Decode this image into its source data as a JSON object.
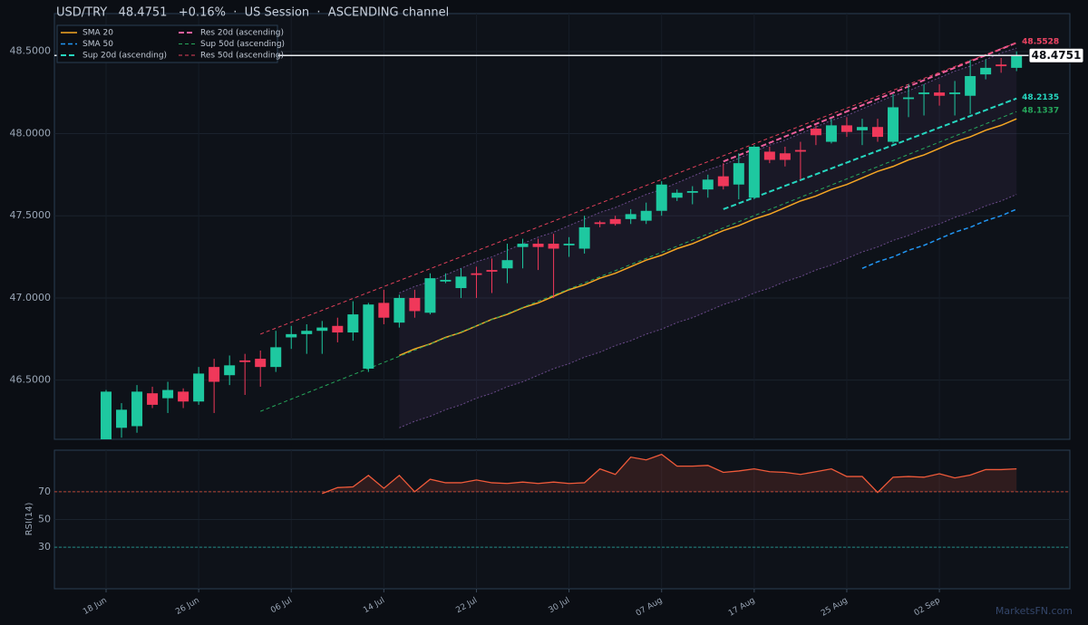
{
  "chart_data": [
    {
      "type": "candlestick",
      "title": "USD/TRY   48.4751   +0.16%  ·  US Session  ·  ASCENDING channel",
      "categories": [
        "18 Jun",
        null,
        null,
        null,
        null,
        null,
        "26 Jun",
        null,
        null,
        null,
        null,
        null,
        "06 Jul",
        null,
        null,
        null,
        null,
        null,
        "14 Jul",
        null,
        null,
        null,
        null,
        null,
        "22 Jul",
        null,
        null,
        null,
        null,
        null,
        "30 Jul",
        null,
        null,
        null,
        null,
        null,
        "07 Aug",
        null,
        null,
        null,
        null,
        null,
        "17 Aug",
        null,
        null,
        null,
        null,
        null,
        "25 Aug",
        null,
        null,
        null,
        null,
        null,
        "02 Sep",
        null,
        null,
        null,
        null,
        null
      ],
      "open": [
        46.14,
        46.21,
        46.22,
        46.42,
        46.39,
        46.43,
        46.37,
        46.58,
        46.53,
        46.62,
        46.63,
        46.58,
        46.76,
        46.78,
        46.8,
        46.83,
        46.79,
        46.57,
        46.97,
        46.85,
        47.0,
        46.91,
        47.1,
        47.06,
        47.15,
        47.17,
        47.18,
        47.31,
        47.33,
        47.33,
        47.32,
        47.3,
        47.46,
        47.48,
        47.48,
        47.47,
        47.53,
        47.61,
        47.64,
        47.66,
        47.74,
        47.69,
        47.61,
        47.89,
        47.88,
        47.9,
        48.03,
        47.95,
        48.05,
        48.02,
        48.04,
        47.95,
        48.21,
        48.24,
        48.25,
        48.24,
        48.23,
        48.36,
        48.42,
        48.4
      ],
      "high": [
        46.44,
        46.36,
        46.47,
        46.46,
        46.49,
        46.45,
        46.58,
        46.63,
        46.65,
        46.66,
        46.68,
        46.8,
        46.83,
        46.84,
        46.86,
        46.88,
        46.98,
        46.97,
        47.05,
        47.02,
        47.05,
        47.15,
        47.15,
        47.18,
        47.19,
        47.24,
        47.33,
        47.36,
        47.36,
        47.39,
        47.37,
        47.5,
        47.47,
        47.5,
        47.54,
        47.58,
        47.71,
        47.66,
        47.68,
        47.75,
        47.82,
        47.88,
        47.93,
        47.92,
        47.92,
        47.95,
        48.05,
        48.09,
        48.1,
        48.09,
        48.09,
        48.24,
        48.3,
        48.3,
        48.3,
        48.32,
        48.45,
        48.45,
        48.46,
        48.5
      ],
      "low": [
        46.14,
        46.15,
        46.18,
        46.33,
        46.3,
        46.33,
        46.35,
        46.3,
        46.47,
        46.41,
        46.46,
        46.55,
        46.69,
        46.66,
        46.66,
        46.73,
        46.74,
        46.55,
        46.84,
        46.82,
        46.88,
        46.9,
        47.09,
        47.0,
        47.0,
        47.03,
        47.09,
        47.18,
        47.17,
        47.0,
        47.25,
        47.27,
        47.43,
        47.44,
        47.45,
        47.45,
        47.5,
        47.59,
        47.57,
        47.61,
        47.66,
        47.6,
        47.6,
        47.82,
        47.8,
        47.72,
        47.93,
        47.94,
        47.98,
        47.93,
        47.95,
        47.94,
        48.1,
        48.11,
        48.17,
        48.11,
        48.12,
        48.33,
        48.37,
        48.38
      ],
      "close": [
        46.43,
        46.32,
        46.43,
        46.35,
        46.44,
        46.37,
        46.54,
        46.49,
        46.59,
        46.61,
        46.58,
        46.7,
        46.78,
        46.8,
        46.82,
        46.79,
        46.9,
        46.96,
        46.88,
        47.0,
        46.92,
        47.12,
        47.11,
        47.13,
        47.14,
        47.16,
        47.23,
        47.33,
        47.31,
        47.3,
        47.33,
        47.43,
        47.45,
        47.45,
        47.51,
        47.53,
        47.69,
        47.64,
        47.65,
        47.72,
        47.68,
        47.82,
        47.92,
        47.84,
        47.84,
        47.89,
        47.99,
        48.05,
        48.01,
        48.04,
        47.98,
        48.16,
        48.22,
        48.25,
        48.23,
        48.25,
        48.35,
        48.4,
        48.41,
        48.4751
      ],
      "up_color": "#1ec8a0",
      "down_color": "#f0385a",
      "band_upper": [
        null,
        null,
        null,
        null,
        null,
        null,
        null,
        null,
        null,
        null,
        null,
        null,
        null,
        null,
        null,
        null,
        null,
        null,
        null,
        47.03,
        47.07,
        47.1,
        47.14,
        47.18,
        47.22,
        47.25,
        47.29,
        47.33,
        47.37,
        47.4,
        47.44,
        47.48,
        47.52,
        47.55,
        47.59,
        47.63,
        47.66,
        47.7,
        47.74,
        47.78,
        47.81,
        47.85,
        47.89,
        47.93,
        47.96,
        48.0,
        48.04,
        48.08,
        48.11,
        48.15,
        48.19,
        48.23,
        48.26,
        48.3,
        48.34,
        48.38,
        48.41,
        48.45,
        48.49,
        48.52
      ],
      "band_lower": [
        null,
        null,
        null,
        null,
        null,
        null,
        null,
        null,
        null,
        null,
        null,
        null,
        null,
        null,
        null,
        null,
        null,
        null,
        null,
        46.21,
        46.25,
        46.28,
        46.32,
        46.35,
        46.39,
        46.42,
        46.46,
        46.49,
        46.53,
        46.57,
        46.6,
        46.64,
        46.67,
        46.71,
        46.74,
        46.78,
        46.81,
        46.85,
        46.88,
        46.92,
        46.96,
        46.99,
        47.03,
        47.06,
        47.1,
        47.13,
        47.17,
        47.2,
        47.24,
        47.28,
        47.31,
        47.35,
        47.38,
        47.42,
        47.45,
        47.49,
        47.52,
        47.56,
        47.59,
        47.63
      ],
      "band_color": "#6a4a8a",
      "series": [
        {
          "name": "SMA 20",
          "color": "#f5a623",
          "dash": "",
          "width": 1.5,
          "values": [
            null,
            null,
            null,
            null,
            null,
            null,
            null,
            null,
            null,
            null,
            null,
            null,
            null,
            null,
            null,
            null,
            null,
            null,
            null,
            46.65,
            46.69,
            46.72,
            46.76,
            46.79,
            46.83,
            46.87,
            46.9,
            46.94,
            46.97,
            47.01,
            47.05,
            47.08,
            47.12,
            47.15,
            47.19,
            47.23,
            47.26,
            47.3,
            47.33,
            47.37,
            47.41,
            47.44,
            47.48,
            47.51,
            47.55,
            47.59,
            47.62,
            47.66,
            47.69,
            47.73,
            47.77,
            47.8,
            47.84,
            47.87,
            47.91,
            47.95,
            47.98,
            48.02,
            48.05,
            48.09
          ]
        },
        {
          "name": "SMA 50",
          "color": "#2196f3",
          "dash": "5 3",
          "width": 1.5,
          "values": [
            null,
            null,
            null,
            null,
            null,
            null,
            null,
            null,
            null,
            null,
            null,
            null,
            null,
            null,
            null,
            null,
            null,
            null,
            null,
            null,
            null,
            null,
            null,
            null,
            null,
            null,
            null,
            null,
            null,
            null,
            null,
            null,
            null,
            null,
            null,
            null,
            null,
            null,
            null,
            null,
            null,
            null,
            null,
            null,
            null,
            null,
            null,
            null,
            null,
            47.18,
            47.22,
            47.25,
            47.29,
            47.32,
            47.36,
            47.4,
            47.43,
            47.47,
            47.5,
            47.54
          ]
        },
        {
          "name": "Sup 20d (ascending)",
          "color": "#26d7c0",
          "dash": "6 3",
          "width": 2,
          "x": [
            40,
            59
          ],
          "values": [
            47.54,
            48.2135
          ],
          "value_labels": [
            null,
            "48.2135"
          ]
        },
        {
          "name": "Res 20d (ascending)",
          "color": "#f0609e",
          "dash": "6 3",
          "width": 2,
          "x": [
            40,
            59
          ],
          "values": [
            47.83,
            48.5528
          ],
          "value_labels": [
            null,
            "48.5528"
          ]
        },
        {
          "name": "Sup 50d (ascending)",
          "color": "#26a65b",
          "dash": "4 3",
          "width": 1,
          "x": [
            10,
            59
          ],
          "values": [
            46.31,
            48.1337
          ],
          "value_labels": [
            null,
            "48.1337"
          ]
        },
        {
          "name": "Res 50d (ascending)",
          "color": "#e0405a",
          "dash": "4 3",
          "width": 1,
          "x": [
            10,
            59
          ],
          "values": [
            46.78,
            48.5528
          ],
          "value_labels": [
            null,
            "48.5528"
          ]
        }
      ],
      "last": {
        "value": 48.4751,
        "label": "48.4751"
      },
      "ylim": [
        46.14,
        48.73
      ],
      "yticks": [
        {
          "value": 46.5,
          "label": "46.5000"
        },
        {
          "value": 47,
          "label": "47.0000"
        },
        {
          "value": 47.5,
          "label": "47.5000"
        },
        {
          "value": 48,
          "label": "48.0000"
        },
        {
          "value": 48.5,
          "label": "48.5000"
        }
      ],
      "grid": true,
      "legend": "upper left",
      "watermark": "MarketsFN.com"
    },
    {
      "type": "line",
      "ylabel": "RSI(14)",
      "color": "#f05a3a",
      "values": [
        null,
        null,
        null,
        null,
        null,
        null,
        null,
        null,
        null,
        null,
        null,
        null,
        null,
        null,
        68.7,
        73,
        73.5,
        81.8,
        72.5,
        81.8,
        70,
        79,
        76.5,
        76.5,
        78.5,
        76.5,
        76,
        77,
        76,
        77,
        76,
        76.5,
        86.5,
        82.5,
        95,
        93,
        97,
        88.5,
        88.5,
        89,
        84,
        85,
        86.5,
        84.5,
        84,
        82.5,
        84.5,
        86.5,
        81,
        81,
        69.5,
        80.5,
        81,
        80.5,
        83,
        80,
        82,
        86,
        86,
        86.5
      ],
      "ylim": [
        0,
        100
      ],
      "yticks": [
        30,
        50,
        70
      ],
      "threshold_lines": [
        {
          "value": 70,
          "color": "#e0503a"
        },
        {
          "value": 30,
          "color": "#26a69a"
        }
      ]
    }
  ]
}
